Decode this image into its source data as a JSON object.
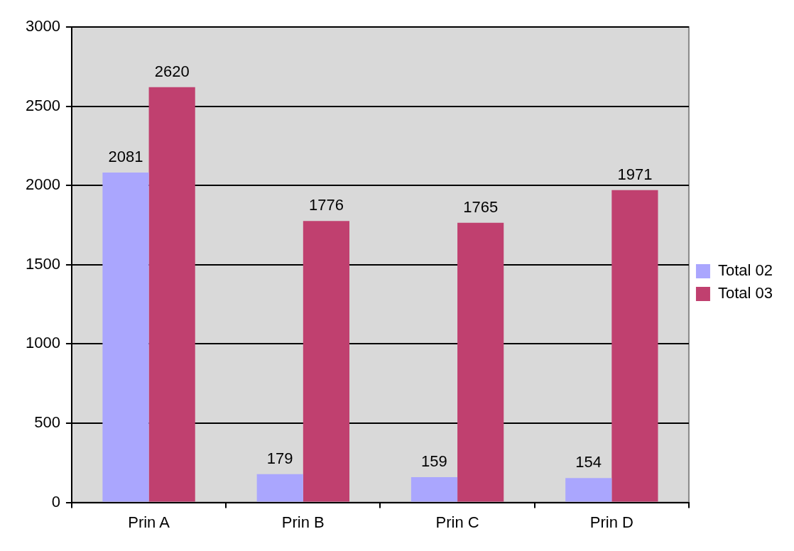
{
  "chart_data": {
    "type": "bar",
    "categories": [
      "Prin A",
      "Prin B",
      "Prin C",
      "Prin D"
    ],
    "series": [
      {
        "name": "Total 02",
        "color": "#aaa6fe",
        "values": [
          2081,
          179,
          159,
          154
        ]
      },
      {
        "name": "Total 03",
        "color": "#c0406f",
        "values": [
          2620,
          1776,
          1765,
          1971
        ]
      }
    ],
    "ylim": [
      0,
      3000
    ],
    "yticks": [
      0,
      500,
      1000,
      1500,
      2000,
      2500,
      3000
    ],
    "grid": "y",
    "legend": "right",
    "data_labels": true
  }
}
